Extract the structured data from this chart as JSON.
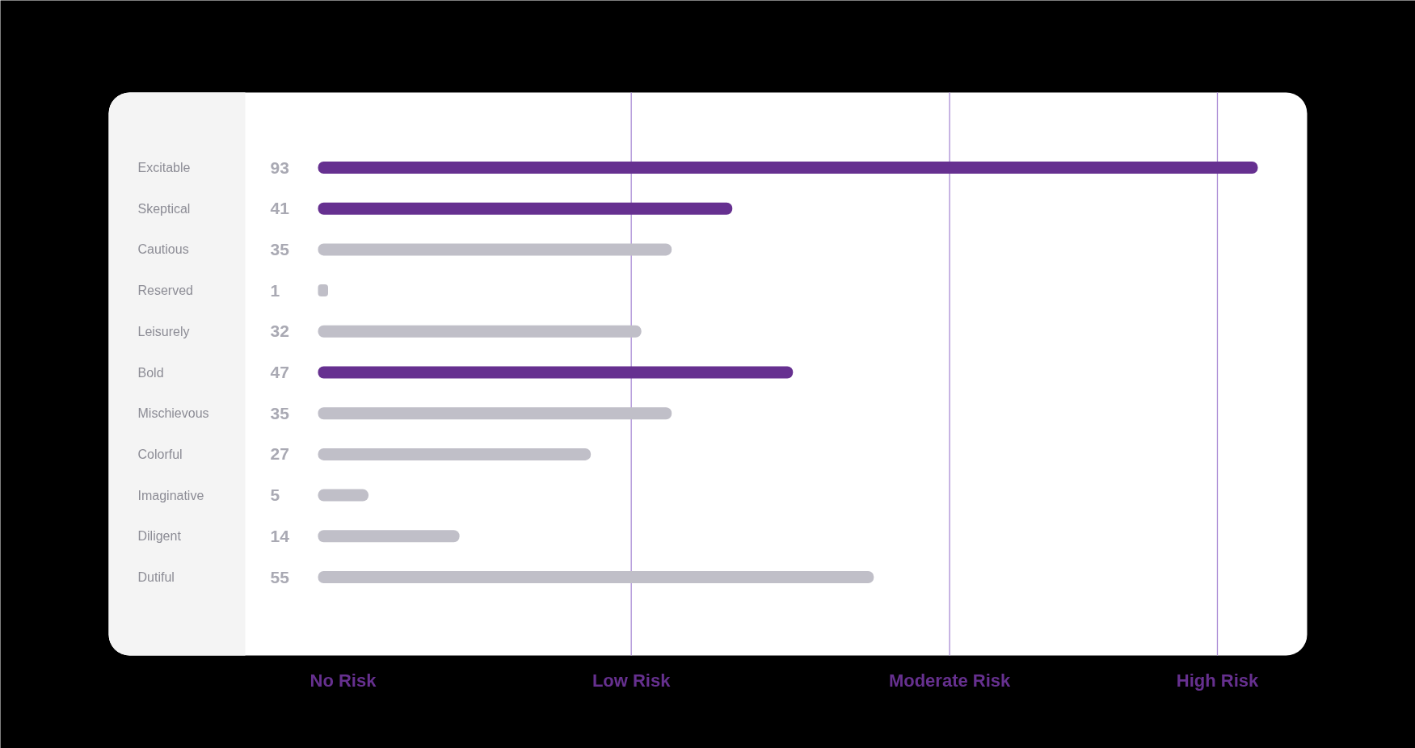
{
  "chart_data": {
    "type": "bar",
    "orientation": "horizontal",
    "categories": [
      "Excitable",
      "Skeptical",
      "Cautious",
      "Reserved",
      "Leisurely",
      "Bold",
      "Mischievous",
      "Colorful",
      "Imaginative",
      "Diligent",
      "Dutiful"
    ],
    "values": [
      93,
      41,
      35,
      1,
      32,
      47,
      35,
      27,
      5,
      14,
      55
    ],
    "colors": [
      "#663090",
      "#663090",
      "#c0bfc8",
      "#c0bfc8",
      "#c0bfc8",
      "#663090",
      "#c0bfc8",
      "#c0bfc8",
      "#c0bfc8",
      "#c0bfc8",
      "#c0bfc8"
    ],
    "data_labels": true,
    "ref_lines": [
      {
        "axis": "x",
        "value": 31,
        "label": "Low Risk",
        "color": "#a98ad4"
      },
      {
        "axis": "x",
        "value": 62.5,
        "label": "Moderate Risk",
        "color": "#a98ad4"
      },
      {
        "axis": "x",
        "value": 89,
        "label": "High Risk",
        "color": "#a98ad4"
      }
    ],
    "annotations": [
      "No Risk"
    ]
  }
}
